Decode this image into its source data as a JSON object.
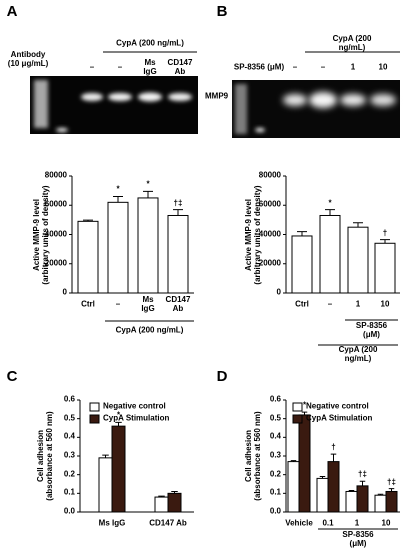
{
  "gels": [
    {
      "panel": "A",
      "row_label": "Antibody\n(10 μg/mL)",
      "group_label": "CypA (200 ng/mL)",
      "lanes": [
        "–",
        "–",
        "Ms\nIgG",
        "CD147\nAb"
      ],
      "band_label": "MMP9"
    },
    {
      "panel": "B",
      "row_label": "SP-8356 (μM)",
      "group_label": "CypA (200 ng/mL)",
      "lanes": [
        "–",
        "–",
        "1",
        "10"
      ]
    }
  ],
  "chart_data": [
    {
      "type": "bar",
      "ylabel": "Active MMP-9 level\n(arbitrary units of density)",
      "categories": [
        "Ctrl",
        "–",
        "Ms\nIgG",
        "CD147\nAb"
      ],
      "values": [
        49000,
        62000,
        65000,
        53000
      ],
      "errors": [
        800,
        4000,
        4500,
        4000
      ],
      "annotations": [
        null,
        "*",
        "*",
        "†‡"
      ],
      "group_labels": [
        "CypA (200 ng/mL)"
      ],
      "color": "#ffffff",
      "ylim": [
        0,
        80000
      ],
      "yticks": [
        0,
        20000,
        40000,
        60000,
        80000
      ]
    },
    {
      "type": "bar",
      "ylabel": "Active MMP-9 level\n(arbitrary units of density)",
      "categories": [
        "Ctrl",
        "–",
        "1",
        "10"
      ],
      "values": [
        39000,
        53000,
        45000,
        34000
      ],
      "errors": [
        3000,
        4000,
        3000,
        2500
      ],
      "annotations": [
        null,
        "*",
        null,
        "†"
      ],
      "group_labels": [
        "SP-8356 (μM)",
        "CypA (200 ng/mL)"
      ],
      "color": "#ffffff",
      "ylim": [
        0,
        80000
      ],
      "yticks": [
        0,
        20000,
        40000,
        60000,
        80000
      ]
    },
    {
      "type": "bar",
      "panel": "C",
      "ylabel": "Cell adhesion\n(absorbance at 560 nm)",
      "categories": [
        "Ms IgG",
        "CD147 Ab"
      ],
      "series": [
        {
          "name": "Negative control",
          "color": "#ffffff",
          "values": [
            0.29,
            0.08
          ],
          "errors": [
            0.015,
            0.005
          ],
          "annotations": [
            null,
            null
          ]
        },
        {
          "name": "CypA Stimulation",
          "color": "#3a1a10",
          "values": [
            0.46,
            0.1
          ],
          "errors": [
            0.02,
            0.01
          ],
          "annotations": [
            "*",
            null
          ]
        }
      ],
      "ylim": [
        0,
        0.6
      ],
      "yticks": [
        {
          "value": 0,
          "label": "0.0"
        },
        0.1,
        0.2,
        0.3,
        0.4,
        0.5,
        0.6
      ]
    },
    {
      "type": "bar",
      "panel": "D",
      "ylabel": "Cell adhesion\n(absorbance at 560 nm)",
      "categories": [
        "Vehicle",
        "0.1",
        "1",
        "10"
      ],
      "series": [
        {
          "name": "Negative control",
          "color": "#ffffff",
          "values": [
            0.27,
            0.18,
            0.11,
            0.09
          ],
          "errors": [
            0.005,
            0.01,
            0.005,
            0.005
          ],
          "annotations": [
            null,
            null,
            null,
            null
          ]
        },
        {
          "name": "CypA Stimulation",
          "color": "#3a1a10",
          "values": [
            0.52,
            0.27,
            0.14,
            0.11
          ],
          "errors": [
            0.015,
            0.04,
            0.025,
            0.015
          ],
          "annotations": [
            "*",
            "†",
            "†‡",
            "†‡"
          ]
        }
      ],
      "group_labels": [
        "SP-8356 (μM)"
      ],
      "ylim": [
        0,
        0.6
      ],
      "yticks": [
        {
          "value": 0,
          "label": "0.0"
        },
        0.1,
        0.2,
        0.3,
        0.4,
        0.5,
        0.6
      ]
    }
  ]
}
